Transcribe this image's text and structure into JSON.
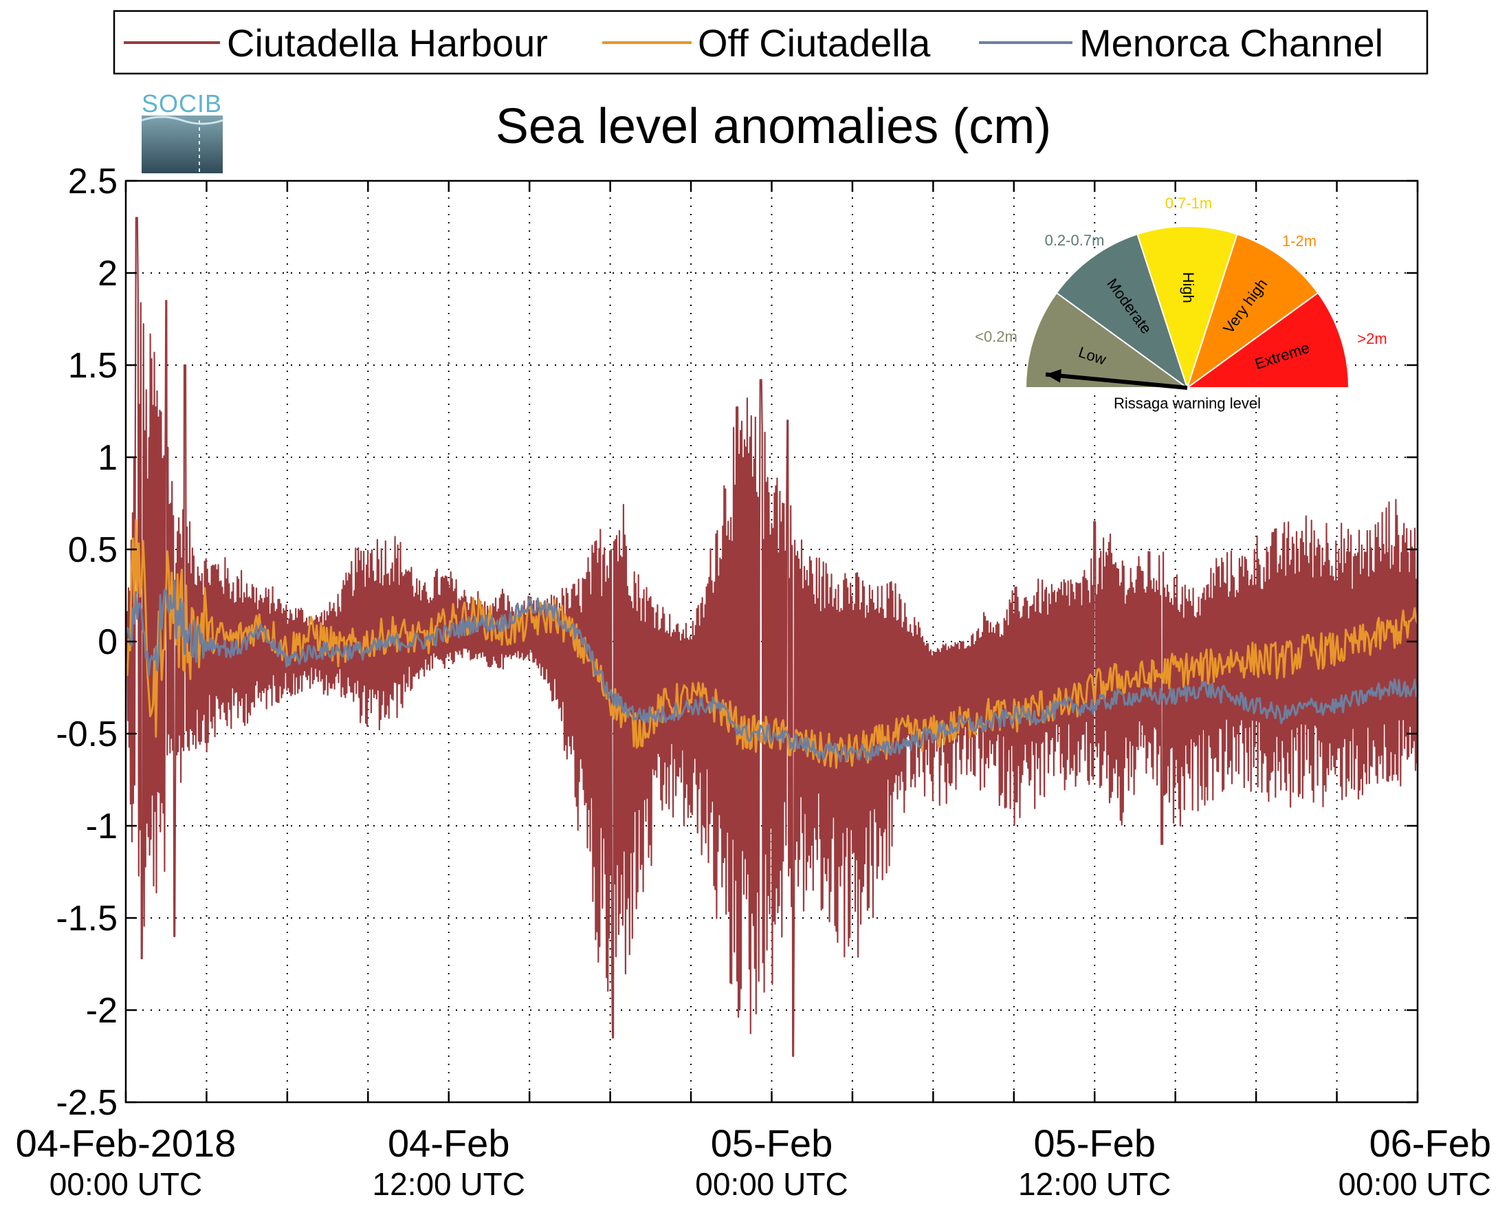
{
  "chart_data": {
    "type": "line",
    "title": "Sea level anomalies (cm)",
    "xlabel": "",
    "ylabel": "",
    "ylim": [
      -2.5,
      2.5
    ],
    "yticks": [
      -2.5,
      -2,
      -1.5,
      -1,
      -0.5,
      0,
      0.5,
      1,
      1.5,
      2,
      2.5
    ],
    "ytick_labels": [
      "-2.5",
      "-2",
      "-1.5",
      "-1",
      "-0.5",
      "0",
      "0.5",
      "1",
      "1.5",
      "2",
      "2.5"
    ],
    "x_range_hours": [
      0,
      48
    ],
    "x_start": "04-Feb-2018 00:00 UTC",
    "xticks_hours": [
      0,
      3,
      6,
      9,
      12,
      15,
      18,
      21,
      24,
      27,
      30,
      33,
      36,
      39,
      42,
      45,
      48
    ],
    "xtick_labels": [
      {
        "hour": 0,
        "line1": "04-Feb-2018",
        "line2": "00:00 UTC"
      },
      {
        "hour": 12,
        "line1": "04-Feb",
        "line2": "12:00 UTC"
      },
      {
        "hour": 24,
        "line1": "05-Feb",
        "line2": "00:00 UTC"
      },
      {
        "hour": 36,
        "line1": "05-Feb",
        "line2": "12:00 UTC"
      },
      {
        "hour": 48,
        "line1": "06-Feb",
        "line2": "00:00 UTC"
      }
    ],
    "grid": true,
    "legend_position": "top",
    "series": [
      {
        "name": "Ciutadella Harbour",
        "color": "#9b3b3e",
        "x_hours": [
          0,
          0.25,
          0.5,
          0.75,
          1,
          1.25,
          1.5,
          1.75,
          2,
          2.5,
          3,
          3.5,
          4,
          4.5,
          5,
          5.5,
          6,
          6.5,
          7,
          7.5,
          8,
          8.5,
          9,
          9.5,
          10,
          10.5,
          11,
          11.5,
          12,
          12.5,
          13,
          13.5,
          14,
          14.5,
          15,
          15.5,
          16,
          16.5,
          17,
          17.5,
          18,
          18.5,
          19,
          19.5,
          20,
          20.5,
          21,
          21.5,
          22,
          22.5,
          23,
          23.5,
          24,
          24.5,
          25,
          25.5,
          26,
          26.5,
          27,
          27.5,
          28,
          28.5,
          29,
          29.5,
          30,
          30.5,
          31,
          31.5,
          32,
          32.5,
          33,
          33.5,
          34,
          34.5,
          35,
          35.5,
          36,
          36.5,
          37,
          37.5,
          38,
          38.5,
          39,
          39.5,
          40,
          40.5,
          41,
          41.5,
          42,
          42.5,
          43,
          43.5,
          44,
          44.5,
          45,
          45.5,
          46,
          46.5,
          47,
          47.5,
          48
        ],
        "upper": [
          0.05,
          0.8,
          2.3,
          1.5,
          1.8,
          1.5,
          1.4,
          0.9,
          0.8,
          0.6,
          0.5,
          0.5,
          0.4,
          0.4,
          0.3,
          0.3,
          0.2,
          0.2,
          0.15,
          0.2,
          0.3,
          0.5,
          0.6,
          0.6,
          0.6,
          0.5,
          0.3,
          0.4,
          0.4,
          0.3,
          0.3,
          0.2,
          0.3,
          0.2,
          0.25,
          0.2,
          0.3,
          0.3,
          0.4,
          0.6,
          0.8,
          0.8,
          0.4,
          0.3,
          0.2,
          0.1,
          0.1,
          0.3,
          0.8,
          1.2,
          1.4,
          1.2,
          1.15,
          0.9,
          0.6,
          0.5,
          0.45,
          0.5,
          0.4,
          0.35,
          0.3,
          0.35,
          0.2,
          0.1,
          -0.05,
          0.0,
          0.0,
          0.05,
          0.2,
          0.1,
          0.3,
          0.3,
          0.35,
          0.3,
          0.4,
          0.35,
          0.5,
          0.6,
          0.5,
          0.45,
          0.5,
          0.5,
          0.4,
          0.3,
          0.3,
          0.5,
          0.5,
          0.5,
          0.6,
          0.6,
          0.65,
          0.7,
          0.7,
          0.7,
          0.7,
          0.6,
          0.65,
          0.7,
          0.8,
          0.75,
          0.65
        ],
        "lower": [
          -0.05,
          -1.3,
          -1.4,
          -1.75,
          -1.4,
          -1.55,
          -1.2,
          -0.8,
          -0.8,
          -0.6,
          -0.6,
          -0.5,
          -0.5,
          -0.45,
          -0.4,
          -0.35,
          -0.3,
          -0.3,
          -0.25,
          -0.3,
          -0.3,
          -0.4,
          -0.5,
          -0.5,
          -0.45,
          -0.3,
          -0.2,
          -0.15,
          -0.15,
          -0.1,
          -0.1,
          -0.15,
          -0.15,
          -0.1,
          -0.1,
          -0.2,
          -0.4,
          -0.8,
          -1.2,
          -1.8,
          -2.1,
          -1.9,
          -1.6,
          -1.3,
          -1.0,
          -1.0,
          -1.1,
          -1.2,
          -1.6,
          -2.0,
          -2.15,
          -2.25,
          -1.9,
          -1.6,
          -1.5,
          -1.5,
          -1.6,
          -1.7,
          -1.8,
          -1.7,
          -1.5,
          -1.2,
          -0.9,
          -0.85,
          -0.9,
          -0.9,
          -0.8,
          -0.8,
          -0.85,
          -0.9,
          -1.0,
          -0.95,
          -0.9,
          -0.85,
          -0.85,
          -0.8,
          -0.85,
          -0.9,
          -1.05,
          -0.85,
          -0.8,
          -0.85,
          -1.1,
          -1.0,
          -0.9,
          -0.85,
          -0.8,
          -0.8,
          -0.85,
          -0.9,
          -0.95,
          -0.9,
          -0.85,
          -0.95,
          -0.9,
          -0.85,
          -0.9,
          -0.85,
          -0.8,
          -0.85,
          -0.8
        ],
        "peaks": [
          {
            "x": 0.4,
            "y": 2.3
          },
          {
            "x": 1.5,
            "y": 1.85
          },
          {
            "x": 2.2,
            "y": 1.5
          },
          {
            "x": 23.6,
            "y": 1.42
          },
          {
            "x": 24.6,
            "y": 1.2
          },
          {
            "x": 0.6,
            "y": -1.72
          },
          {
            "x": 1.8,
            "y": -1.6
          },
          {
            "x": 18.1,
            "y": -2.15
          },
          {
            "x": 24.8,
            "y": -2.25
          },
          {
            "x": 36.0,
            "y": 0.65
          },
          {
            "x": 38.5,
            "y": -1.1
          }
        ]
      },
      {
        "name": "Off Ciutadella",
        "color": "#e8962a",
        "x_hours": [
          0,
          0.5,
          1,
          1.5,
          2,
          3,
          4,
          5,
          6,
          7,
          8,
          9,
          10,
          11,
          12,
          13,
          14,
          15,
          16,
          17,
          18,
          19,
          20,
          21,
          22,
          23,
          24,
          25,
          26,
          27,
          28,
          29,
          30,
          31,
          32,
          33,
          34,
          35,
          36,
          37,
          38,
          39,
          40,
          41,
          42,
          43,
          44,
          45,
          46,
          47,
          48
        ],
        "y": [
          0.0,
          0.5,
          -0.4,
          0.3,
          0.1,
          0.05,
          0.0,
          0.1,
          -0.05,
          0.05,
          -0.05,
          0.0,
          0.05,
          0.0,
          0.1,
          0.15,
          0.05,
          0.1,
          0.15,
          -0.05,
          -0.3,
          -0.5,
          -0.35,
          -0.3,
          -0.35,
          -0.5,
          -0.5,
          -0.55,
          -0.6,
          -0.6,
          -0.55,
          -0.5,
          -0.5,
          -0.45,
          -0.4,
          -0.4,
          -0.35,
          -0.35,
          -0.25,
          -0.2,
          -0.2,
          -0.15,
          -0.15,
          -0.1,
          -0.1,
          -0.1,
          -0.05,
          -0.05,
          0.0,
          0.05,
          0.1
        ]
      },
      {
        "name": "Menorca Channel",
        "color": "#6e7f9e",
        "x_hours": [
          0,
          0.5,
          1,
          1.5,
          2,
          3,
          4,
          5,
          6,
          7,
          8,
          9,
          10,
          11,
          12,
          13,
          14,
          15,
          16,
          17,
          18,
          19,
          20,
          21,
          22,
          23,
          24,
          25,
          26,
          27,
          28,
          29,
          30,
          31,
          32,
          33,
          34,
          35,
          36,
          37,
          38,
          39,
          40,
          41,
          42,
          43,
          44,
          45,
          46,
          47,
          48
        ],
        "y": [
          0.0,
          0.2,
          -0.2,
          0.35,
          0.1,
          0.0,
          -0.05,
          0.05,
          -0.1,
          -0.05,
          -0.05,
          -0.05,
          0.0,
          0.0,
          0.05,
          0.1,
          0.1,
          0.2,
          0.15,
          0.0,
          -0.3,
          -0.4,
          -0.4,
          -0.35,
          -0.35,
          -0.5,
          -0.5,
          -0.55,
          -0.6,
          -0.6,
          -0.6,
          -0.55,
          -0.5,
          -0.45,
          -0.45,
          -0.4,
          -0.4,
          -0.35,
          -0.35,
          -0.3,
          -0.3,
          -0.3,
          -0.25,
          -0.3,
          -0.35,
          -0.4,
          -0.35,
          -0.35,
          -0.3,
          -0.25,
          -0.25
        ]
      }
    ]
  },
  "logo": {
    "text": "SOCIB"
  },
  "gauge": {
    "caption": "Rissaga warning level",
    "needle_level": "Low",
    "segments": [
      {
        "label": "Low",
        "range": "<0.2m",
        "color": "#888b6a",
        "range_color": "#888b6a"
      },
      {
        "label": "Moderate",
        "range": "0.2-0.7m",
        "color": "#5c7a78",
        "range_color": "#5c7a78"
      },
      {
        "label": "High",
        "range": "0.7-1m",
        "color": "#fde60a",
        "range_color": "#f2d200"
      },
      {
        "label": "Very high",
        "range": "1-2m",
        "color": "#ff8a00",
        "range_color": "#ff8a00"
      },
      {
        "label": "Extreme",
        "range": ">2m",
        "color": "#ff1414",
        "range_color": "#ff1414"
      }
    ]
  },
  "colors": {
    "axis": "#000000",
    "grid": "#000000",
    "background": "#ffffff"
  }
}
